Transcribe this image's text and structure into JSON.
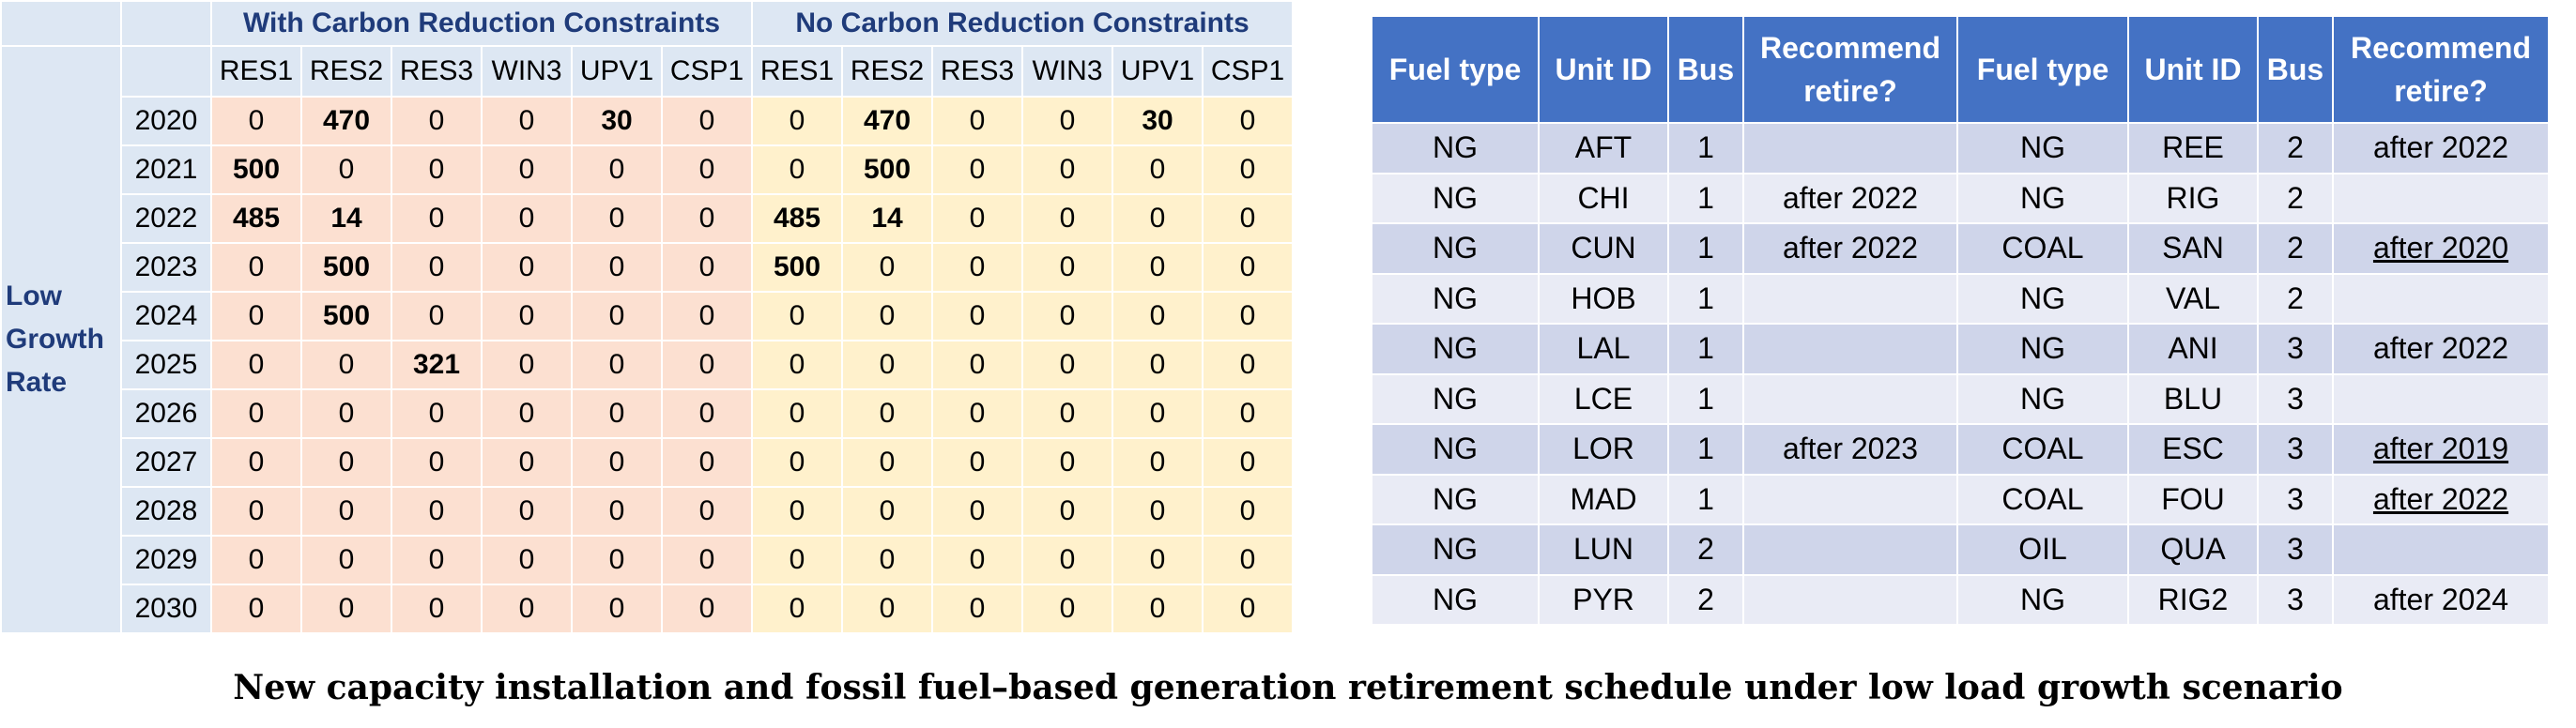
{
  "left": {
    "group_headers": [
      "With Carbon Reduction Constraints",
      "No Carbon Reduction Constraints"
    ],
    "columns": [
      "RES1",
      "RES2",
      "RES3",
      "WIN3",
      "UPV1",
      "CSP1"
    ],
    "row_group_label": "Low Growth Rate",
    "rows": [
      {
        "year": "2020",
        "with": [
          "0",
          "470",
          "0",
          "0",
          "30",
          "0"
        ],
        "no": [
          "0",
          "470",
          "0",
          "0",
          "30",
          "0"
        ]
      },
      {
        "year": "2021",
        "with": [
          "500",
          "0",
          "0",
          "0",
          "0",
          "0"
        ],
        "no": [
          "0",
          "500",
          "0",
          "0",
          "0",
          "0"
        ]
      },
      {
        "year": "2022",
        "with": [
          "485",
          "14",
          "0",
          "0",
          "0",
          "0"
        ],
        "no": [
          "485",
          "14",
          "0",
          "0",
          "0",
          "0"
        ]
      },
      {
        "year": "2023",
        "with": [
          "0",
          "500",
          "0",
          "0",
          "0",
          "0"
        ],
        "no": [
          "500",
          "0",
          "0",
          "0",
          "0",
          "0"
        ]
      },
      {
        "year": "2024",
        "with": [
          "0",
          "500",
          "0",
          "0",
          "0",
          "0"
        ],
        "no": [
          "0",
          "0",
          "0",
          "0",
          "0",
          "0"
        ]
      },
      {
        "year": "2025",
        "with": [
          "0",
          "0",
          "321",
          "0",
          "0",
          "0"
        ],
        "no": [
          "0",
          "0",
          "0",
          "0",
          "0",
          "0"
        ]
      },
      {
        "year": "2026",
        "with": [
          "0",
          "0",
          "0",
          "0",
          "0",
          "0"
        ],
        "no": [
          "0",
          "0",
          "0",
          "0",
          "0",
          "0"
        ]
      },
      {
        "year": "2027",
        "with": [
          "0",
          "0",
          "0",
          "0",
          "0",
          "0"
        ],
        "no": [
          "0",
          "0",
          "0",
          "0",
          "0",
          "0"
        ]
      },
      {
        "year": "2028",
        "with": [
          "0",
          "0",
          "0",
          "0",
          "0",
          "0"
        ],
        "no": [
          "0",
          "0",
          "0",
          "0",
          "0",
          "0"
        ]
      },
      {
        "year": "2029",
        "with": [
          "0",
          "0",
          "0",
          "0",
          "0",
          "0"
        ],
        "no": [
          "0",
          "0",
          "0",
          "0",
          "0",
          "0"
        ]
      },
      {
        "year": "2030",
        "with": [
          "0",
          "0",
          "0",
          "0",
          "0",
          "0"
        ],
        "no": [
          "0",
          "0",
          "0",
          "0",
          "0",
          "0"
        ]
      }
    ]
  },
  "right": {
    "headers": [
      "Fuel type",
      "Unit ID",
      "Bus",
      "Recommend retire?",
      "Fuel type",
      "Unit ID",
      "Bus",
      "Recommend retire?"
    ],
    "rows": [
      [
        "NG",
        "AFT",
        "1",
        "",
        "NG",
        "REE",
        "2",
        "after 2022"
      ],
      [
        "NG",
        "CHI",
        "1",
        "after 2022",
        "NG",
        "RIG",
        "2",
        ""
      ],
      [
        "NG",
        "CUN",
        "1",
        "after 2022",
        "COAL",
        "SAN",
        "2",
        "after 2020"
      ],
      [
        "NG",
        "HOB",
        "1",
        "",
        "NG",
        "VAL",
        "2",
        ""
      ],
      [
        "NG",
        "LAL",
        "1",
        "",
        "NG",
        "ANI",
        "3",
        "after 2022"
      ],
      [
        "NG",
        "LCE",
        "1",
        "",
        "NG",
        "BLU",
        "3",
        ""
      ],
      [
        "NG",
        "LOR",
        "1",
        "after 2023",
        "COAL",
        "ESC",
        "3",
        "after 2019"
      ],
      [
        "NG",
        "MAD",
        "1",
        "",
        "COAL",
        "FOU",
        "3",
        "after 2022"
      ],
      [
        "NG",
        "LUN",
        "2",
        "",
        "OIL",
        "QUA",
        "3",
        ""
      ],
      [
        "NG",
        "PYR",
        "2",
        "",
        "NG",
        "RIG2",
        "3",
        "after 2024"
      ]
    ]
  },
  "caption": "New capacity installation and fossil fuel–based generation retirement schedule under low load growth scenario",
  "colors": {
    "header_blue": "#4472c4",
    "label_blue_bg": "#dde7f3",
    "with_constraints_bg": "#fce0d1",
    "no_constraints_bg": "#fff1cc",
    "row_odd_bg": "#cfd5ea",
    "row_even_bg": "#e9ebf5",
    "group_text": "#1f3b7a"
  }
}
